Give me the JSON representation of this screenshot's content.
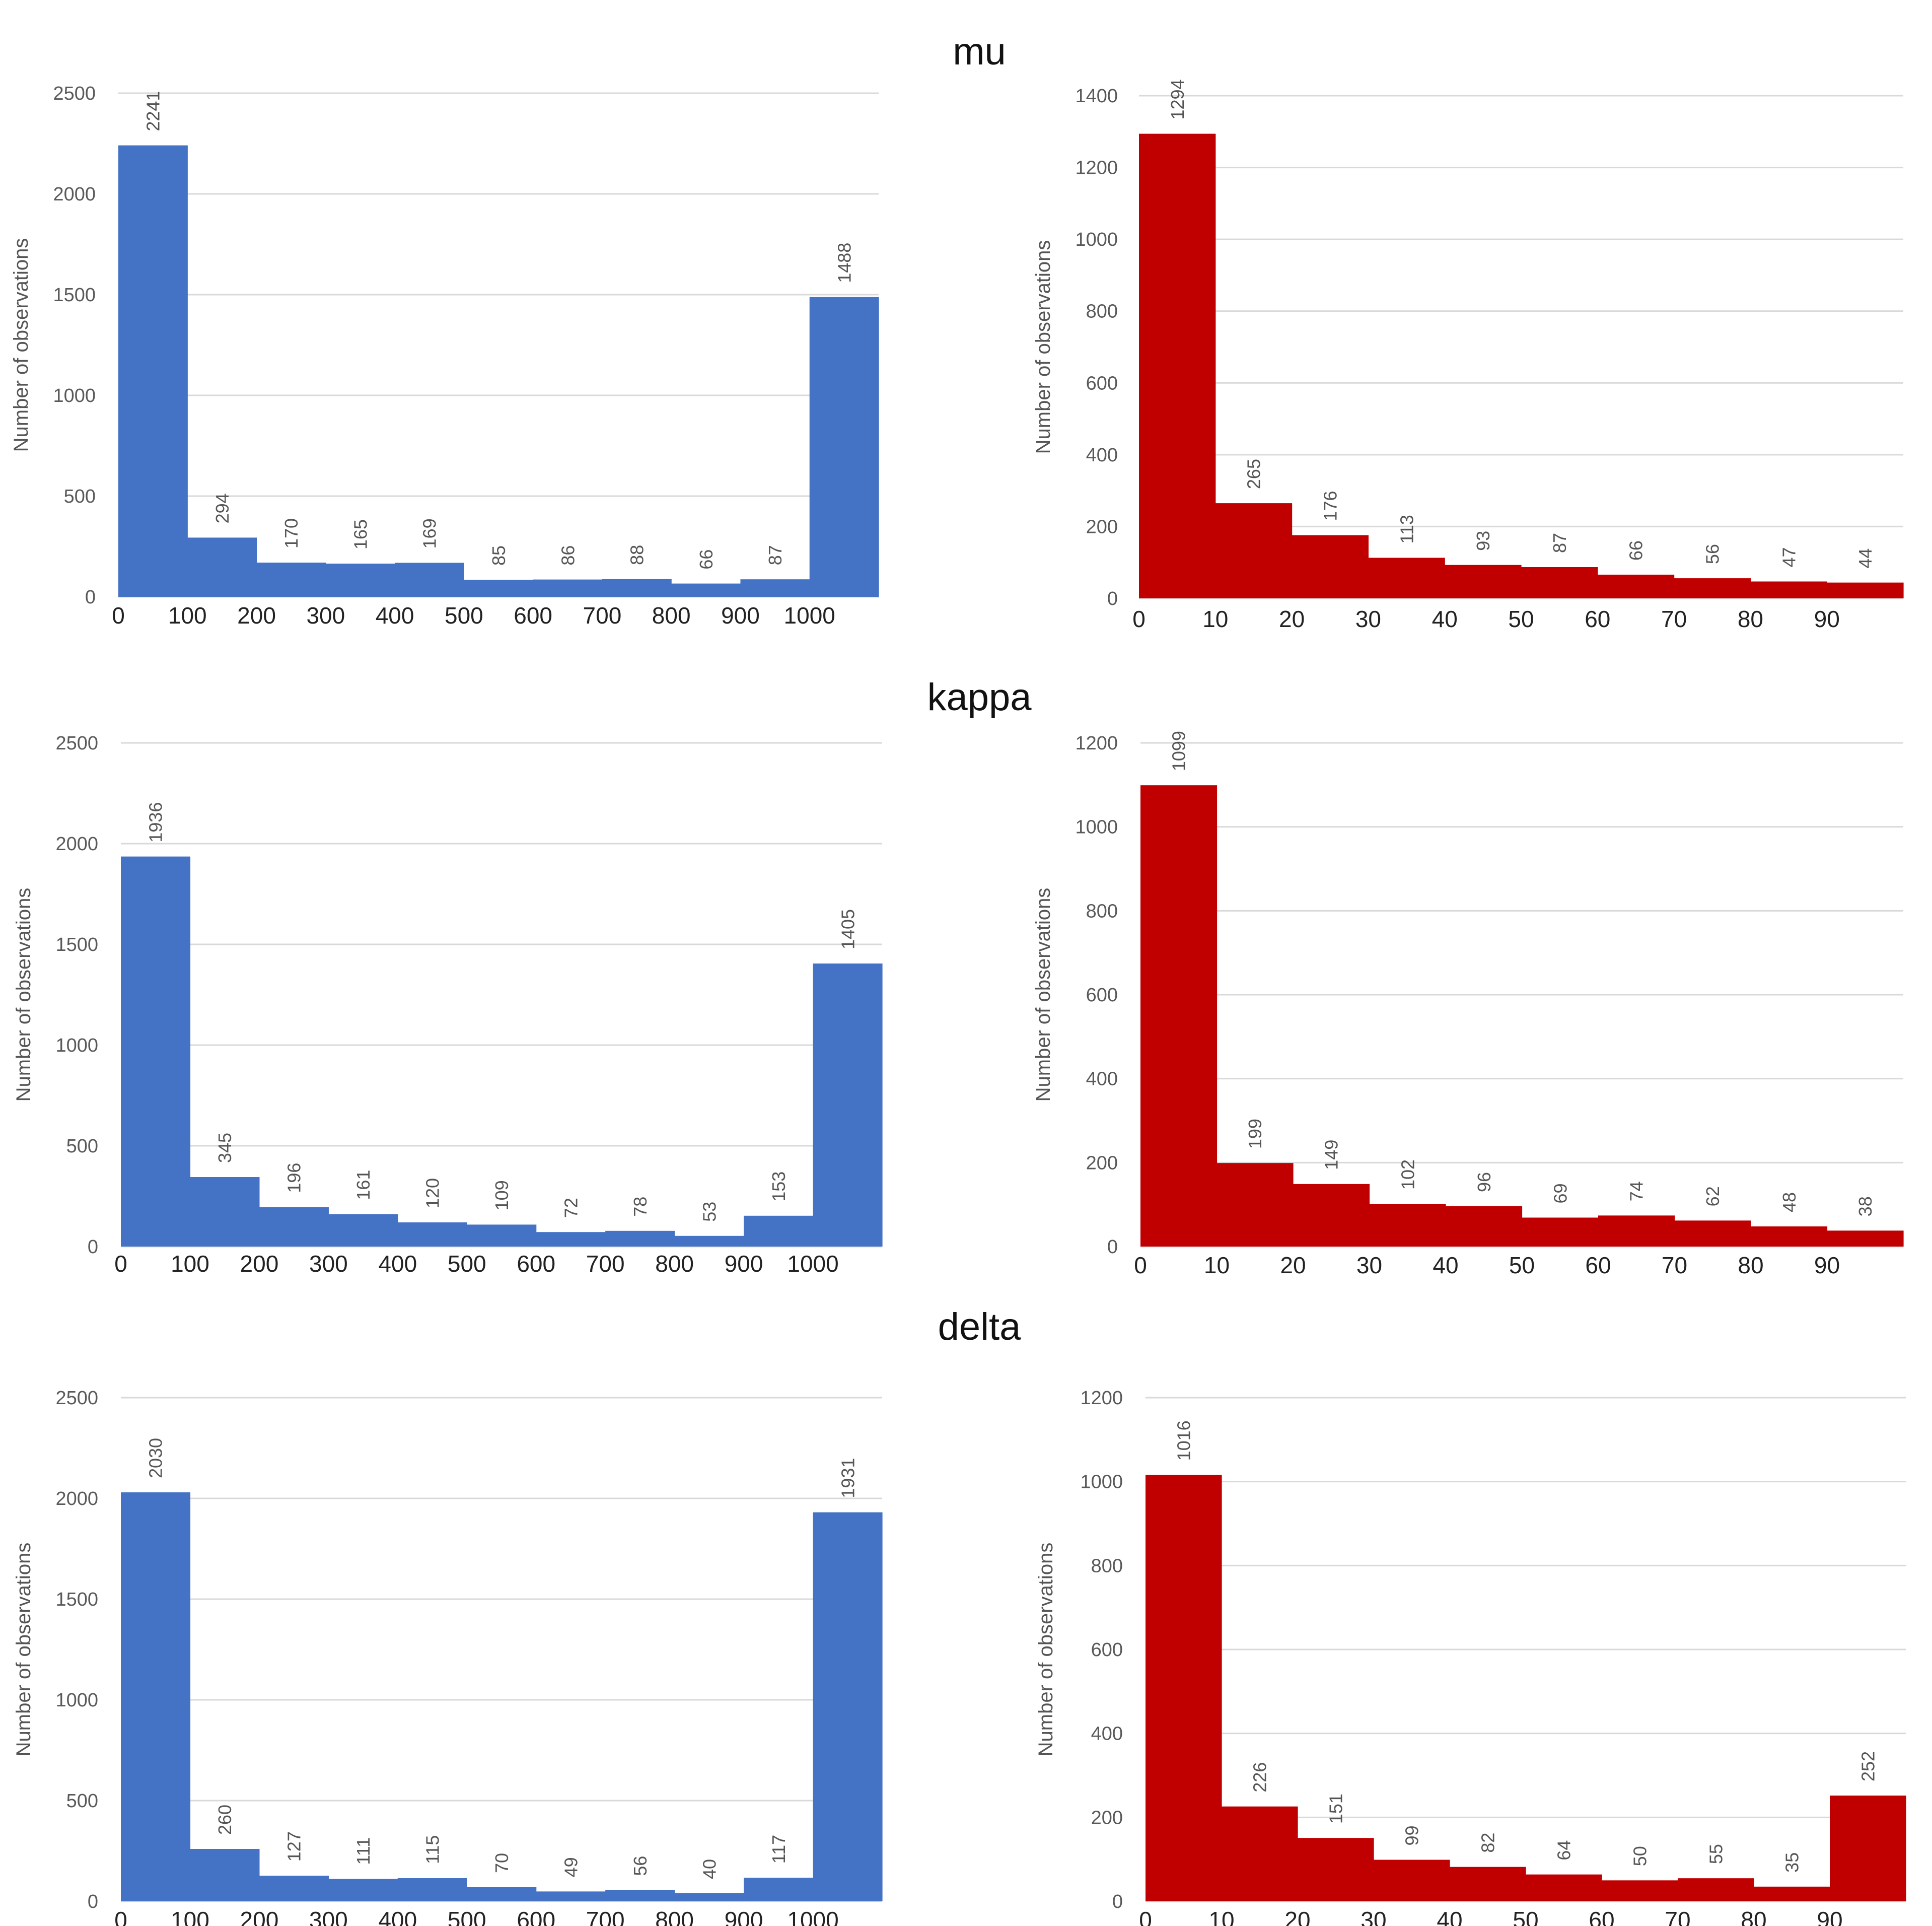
{
  "row_titles": [
    "mu",
    "kappa",
    "delta"
  ],
  "colors": {
    "blue": "#4472C4",
    "red": "#C00000"
  },
  "chart_data": [
    {
      "type": "bar",
      "group": "mu",
      "color": "#4472C4",
      "ylabel": "Number of observations",
      "ylim": [
        0,
        2500
      ],
      "yticks": [
        0,
        500,
        1000,
        1500,
        2000,
        2500
      ],
      "xticks": [
        "0",
        "100",
        "200",
        "300",
        "400",
        "500",
        "600",
        "700",
        "800",
        "900",
        "1000"
      ],
      "categories": [
        "0-100",
        "100-200",
        "200-300",
        "300-400",
        "400-500",
        "500-600",
        "600-700",
        "700-800",
        "800-900",
        "900-1000",
        "1000"
      ],
      "values": [
        2241,
        294,
        170,
        165,
        169,
        85,
        86,
        88,
        66,
        87,
        1488
      ]
    },
    {
      "type": "bar",
      "group": "mu",
      "color": "#C00000",
      "ylabel": "Number of observations",
      "ylim": [
        0,
        1400
      ],
      "yticks": [
        0,
        200,
        400,
        600,
        800,
        1000,
        1200,
        1400
      ],
      "xticks": [
        "0",
        "10",
        "20",
        "30",
        "40",
        "50",
        "60",
        "70",
        "80",
        "90"
      ],
      "categories": [
        "0-10",
        "10-20",
        "20-30",
        "30-40",
        "40-50",
        "50-60",
        "60-70",
        "70-80",
        "80-90",
        "90-100"
      ],
      "values": [
        1294,
        265,
        176,
        113,
        93,
        87,
        66,
        56,
        47,
        44
      ]
    },
    {
      "type": "bar",
      "group": "kappa",
      "color": "#4472C4",
      "ylabel": "Number of observations",
      "ylim": [
        0,
        2500
      ],
      "yticks": [
        0,
        500,
        1000,
        1500,
        2000,
        2500
      ],
      "xticks": [
        "0",
        "100",
        "200",
        "300",
        "400",
        "500",
        "600",
        "700",
        "800",
        "900",
        "1000"
      ],
      "categories": [
        "0-100",
        "100-200",
        "200-300",
        "300-400",
        "400-500",
        "500-600",
        "600-700",
        "700-800",
        "800-900",
        "900-1000",
        "1000"
      ],
      "values": [
        1936,
        345,
        196,
        161,
        120,
        109,
        72,
        78,
        53,
        153,
        1405
      ]
    },
    {
      "type": "bar",
      "group": "kappa",
      "color": "#C00000",
      "ylabel": "Number of observations",
      "ylim": [
        0,
        1200
      ],
      "yticks": [
        0,
        200,
        400,
        600,
        800,
        1000,
        1200
      ],
      "xticks": [
        "0",
        "10",
        "20",
        "30",
        "40",
        "50",
        "60",
        "70",
        "80",
        "90"
      ],
      "categories": [
        "0-10",
        "10-20",
        "20-30",
        "30-40",
        "40-50",
        "50-60",
        "60-70",
        "70-80",
        "80-90",
        "90-100"
      ],
      "values": [
        1099,
        199,
        149,
        102,
        96,
        69,
        74,
        62,
        48,
        38
      ]
    },
    {
      "type": "bar",
      "group": "delta",
      "color": "#4472C4",
      "ylabel": "Number of observations",
      "ylim": [
        0,
        2500
      ],
      "yticks": [
        0,
        500,
        1000,
        1500,
        2000,
        2500
      ],
      "xticks": [
        "0",
        "100",
        "200",
        "300",
        "400",
        "500",
        "600",
        "700",
        "800",
        "900",
        "1000"
      ],
      "categories": [
        "0-100",
        "100-200",
        "200-300",
        "300-400",
        "400-500",
        "500-600",
        "600-700",
        "700-800",
        "800-900",
        "900-1000",
        "1000"
      ],
      "values": [
        2030,
        260,
        127,
        111,
        115,
        70,
        49,
        56,
        40,
        117,
        1931
      ]
    },
    {
      "type": "bar",
      "group": "delta",
      "color": "#C00000",
      "ylabel": "Number of observations",
      "ylim": [
        0,
        1200
      ],
      "yticks": [
        0,
        200,
        400,
        600,
        800,
        1000,
        1200
      ],
      "xticks": [
        "0",
        "10",
        "20",
        "30",
        "40",
        "50",
        "60",
        "70",
        "80",
        "90"
      ],
      "categories": [
        "0-10",
        "10-20",
        "20-30",
        "30-40",
        "40-50",
        "50-60",
        "60-70",
        "70-80",
        "80-90",
        "90-100"
      ],
      "values": [
        1016,
        226,
        151,
        99,
        82,
        64,
        50,
        55,
        35,
        252
      ]
    }
  ]
}
